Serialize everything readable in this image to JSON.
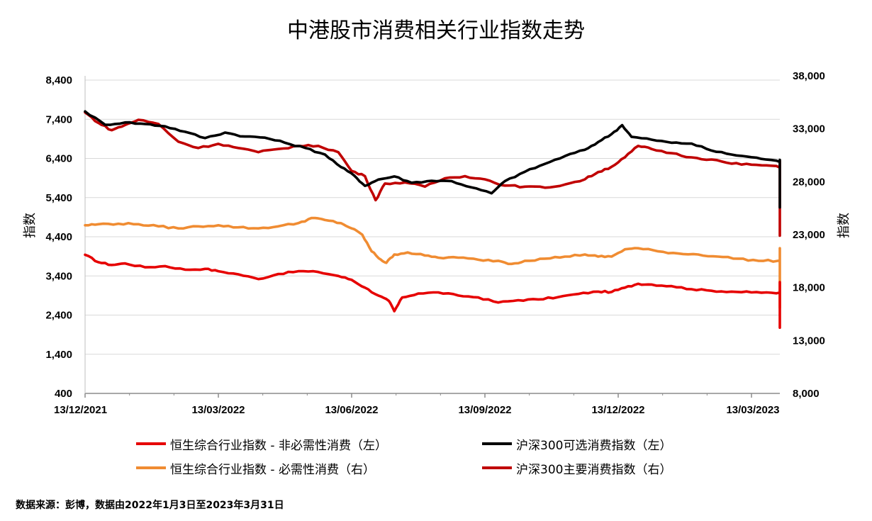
{
  "chart_data": {
    "type": "line",
    "title": "中港股市消费相关行业指数走势",
    "ylabel_left": "指数",
    "ylabel_right": "指数",
    "ylim_left": [
      400,
      8400
    ],
    "ylim_right": [
      8000,
      38000
    ],
    "yticks_left": [
      "8,400",
      "7,400",
      "6,400",
      "5,400",
      "4,400",
      "3,400",
      "2,400",
      "1,400",
      "400"
    ],
    "yticks_right": [
      "38,000",
      "33,000",
      "28,000",
      "23,000",
      "18,000",
      "13,000",
      "8,000"
    ],
    "xticks": [
      "13/12/2021",
      "13/03/2022",
      "13/06/2022",
      "13/09/2022",
      "13/12/2022",
      "13/03/2023"
    ],
    "grid": "horizontal",
    "legend_position": "bottom",
    "series": [
      {
        "name": "恒生综合行业指数 - 非必需性消费（左）",
        "axis": "left",
        "color": "#e60000",
        "points": [
          [
            0,
            3940
          ],
          [
            0.1,
            3750
          ],
          [
            0.2,
            3680
          ],
          [
            0.3,
            3720
          ],
          [
            0.45,
            3620
          ],
          [
            0.6,
            3650
          ],
          [
            0.75,
            3560
          ],
          [
            0.9,
            3580
          ],
          [
            1.0,
            3520
          ],
          [
            1.15,
            3440
          ],
          [
            1.3,
            3320
          ],
          [
            1.45,
            3450
          ],
          [
            1.6,
            3520
          ],
          [
            1.75,
            3500
          ],
          [
            1.9,
            3400
          ],
          [
            2.0,
            3300
          ],
          [
            2.1,
            3100
          ],
          [
            2.2,
            2900
          ],
          [
            2.28,
            2760
          ],
          [
            2.32,
            2500
          ],
          [
            2.38,
            2850
          ],
          [
            2.5,
            2950
          ],
          [
            2.65,
            2980
          ],
          [
            2.8,
            2900
          ],
          [
            2.95,
            2850
          ],
          [
            3.1,
            2720
          ],
          [
            3.25,
            2780
          ],
          [
            3.4,
            2800
          ],
          [
            3.55,
            2860
          ],
          [
            3.7,
            2940
          ],
          [
            3.85,
            3000
          ],
          [
            3.95,
            2990
          ],
          [
            4.05,
            3100
          ],
          [
            4.15,
            3200
          ],
          [
            4.25,
            3180
          ],
          [
            4.4,
            3140
          ],
          [
            4.55,
            3060
          ],
          [
            4.7,
            3020
          ],
          [
            4.85,
            3000
          ],
          [
            5.0,
            2980
          ],
          [
            5.15,
            2970
          ],
          [
            5.3,
            2950
          ],
          [
            5.45,
            2930
          ],
          [
            5.6,
            2880
          ],
          [
            5.75,
            2800
          ],
          [
            5.9,
            2740
          ],
          [
            6.05,
            2680
          ],
          [
            6.2,
            2600
          ],
          [
            6.35,
            2460
          ],
          [
            6.45,
            2240
          ],
          [
            6.55,
            2140
          ],
          [
            6.62,
            2080
          ],
          [
            6.68,
            2150
          ],
          [
            6.75,
            2300
          ],
          [
            6.85,
            2420
          ],
          [
            6.95,
            2550
          ],
          [
            7.05,
            2430
          ],
          [
            7.15,
            2500
          ],
          [
            7.25,
            2700
          ],
          [
            7.35,
            2830
          ],
          [
            7.45,
            2860
          ],
          [
            7.6,
            2840
          ],
          [
            7.75,
            2870
          ],
          [
            7.9,
            2920
          ],
          [
            8.05,
            3000
          ],
          [
            8.2,
            3140
          ],
          [
            8.35,
            3200
          ],
          [
            8.5,
            3240
          ],
          [
            8.65,
            3130
          ],
          [
            8.8,
            3080
          ],
          [
            8.95,
            3020
          ],
          [
            9.1,
            2960
          ],
          [
            9.2,
            2780
          ],
          [
            9.3,
            2760
          ],
          [
            9.4,
            2790
          ],
          [
            9.5,
            2820
          ],
          [
            9.55,
            2900
          ]
        ]
      },
      {
        "name": "沪深300可选消费指数（左）",
        "axis": "left",
        "color": "#000000",
        "points": [
          [
            0,
            7600
          ],
          [
            0.15,
            7260
          ],
          [
            0.3,
            7320
          ],
          [
            0.45,
            7280
          ],
          [
            0.6,
            7220
          ],
          [
            0.75,
            7080
          ],
          [
            0.9,
            6920
          ],
          [
            1.05,
            7060
          ],
          [
            1.2,
            6960
          ],
          [
            1.35,
            6930
          ],
          [
            1.5,
            6800
          ],
          [
            1.65,
            6670
          ],
          [
            1.8,
            6500
          ],
          [
            1.92,
            6180
          ],
          [
            2.02,
            5960
          ],
          [
            2.1,
            5700
          ],
          [
            2.2,
            5860
          ],
          [
            2.32,
            5940
          ],
          [
            2.45,
            5780
          ],
          [
            2.6,
            5830
          ],
          [
            2.75,
            5820
          ],
          [
            2.9,
            5660
          ],
          [
            3.05,
            5510
          ],
          [
            3.15,
            5820
          ],
          [
            3.3,
            6060
          ],
          [
            3.45,
            6260
          ],
          [
            3.6,
            6460
          ],
          [
            3.75,
            6620
          ],
          [
            3.85,
            6820
          ],
          [
            3.95,
            7020
          ],
          [
            4.03,
            7250
          ],
          [
            4.1,
            6950
          ],
          [
            4.25,
            6880
          ],
          [
            4.4,
            6800
          ],
          [
            4.55,
            6780
          ],
          [
            4.7,
            6600
          ],
          [
            4.85,
            6500
          ],
          [
            5.0,
            6430
          ],
          [
            5.15,
            6360
          ],
          [
            5.3,
            6240
          ],
          [
            5.45,
            6300
          ],
          [
            5.6,
            6200
          ],
          [
            5.7,
            5980
          ],
          [
            5.85,
            5920
          ],
          [
            6.0,
            5860
          ],
          [
            6.15,
            5800
          ],
          [
            6.3,
            5650
          ],
          [
            6.42,
            5420
          ],
          [
            6.52,
            5220
          ],
          [
            6.6,
            5150
          ],
          [
            6.7,
            5500
          ],
          [
            6.8,
            5750
          ],
          [
            6.95,
            5850
          ],
          [
            7.1,
            5700
          ],
          [
            7.25,
            5640
          ],
          [
            7.4,
            5860
          ],
          [
            7.55,
            6100
          ],
          [
            7.7,
            6180
          ],
          [
            7.85,
            6040
          ],
          [
            8.0,
            6000
          ],
          [
            8.15,
            6140
          ],
          [
            8.3,
            6280
          ],
          [
            8.45,
            6360
          ],
          [
            8.6,
            6320
          ],
          [
            8.75,
            6280
          ],
          [
            8.9,
            6150
          ],
          [
            9.05,
            6040
          ],
          [
            9.15,
            5880
          ],
          [
            9.25,
            5760
          ],
          [
            9.35,
            5720
          ],
          [
            9.45,
            5800
          ],
          [
            9.55,
            5840
          ]
        ]
      },
      {
        "name": "恒生综合行业指数 - 必需性消费（右）",
        "axis": "right",
        "color": "#f08c32",
        "points": [
          [
            0,
            24100
          ],
          [
            0.1,
            24200
          ],
          [
            0.25,
            24250
          ],
          [
            0.4,
            24200
          ],
          [
            0.55,
            24000
          ],
          [
            0.7,
            23800
          ],
          [
            0.85,
            24000
          ],
          [
            1.0,
            24100
          ],
          [
            1.15,
            23900
          ],
          [
            1.3,
            23800
          ],
          [
            1.45,
            24000
          ],
          [
            1.6,
            24300
          ],
          [
            1.7,
            24800
          ],
          [
            1.8,
            24600
          ],
          [
            1.92,
            24300
          ],
          [
            2.0,
            23800
          ],
          [
            2.08,
            23200
          ],
          [
            2.15,
            21600
          ],
          [
            2.22,
            20800
          ],
          [
            2.26,
            20500
          ],
          [
            2.32,
            21300
          ],
          [
            2.42,
            21500
          ],
          [
            2.55,
            21200
          ],
          [
            2.65,
            21000
          ],
          [
            2.8,
            21000
          ],
          [
            2.95,
            20800
          ],
          [
            3.1,
            20700
          ],
          [
            3.2,
            20400
          ],
          [
            3.3,
            20700
          ],
          [
            3.45,
            20900
          ],
          [
            3.6,
            21100
          ],
          [
            3.75,
            21300
          ],
          [
            3.85,
            21100
          ],
          [
            3.95,
            21100
          ],
          [
            4.05,
            21800
          ],
          [
            4.15,
            21900
          ],
          [
            4.3,
            21600
          ],
          [
            4.45,
            21400
          ],
          [
            4.6,
            21300
          ],
          [
            4.75,
            21100
          ],
          [
            4.9,
            20900
          ],
          [
            5.05,
            20700
          ],
          [
            5.2,
            20700
          ],
          [
            5.35,
            20500
          ],
          [
            5.5,
            20400
          ],
          [
            5.6,
            20300
          ],
          [
            5.75,
            20200
          ],
          [
            5.9,
            20100
          ],
          [
            6.0,
            20100
          ],
          [
            6.1,
            19700
          ],
          [
            6.2,
            19200
          ],
          [
            6.3,
            18400
          ],
          [
            6.4,
            17200
          ],
          [
            6.5,
            16700
          ],
          [
            6.55,
            16200
          ],
          [
            6.65,
            16800
          ],
          [
            6.75,
            17800
          ],
          [
            6.85,
            18300
          ],
          [
            6.95,
            18700
          ],
          [
            7.05,
            19100
          ],
          [
            7.15,
            18900
          ],
          [
            7.25,
            19400
          ],
          [
            7.3,
            20300
          ],
          [
            7.4,
            20700
          ],
          [
            7.55,
            20900
          ],
          [
            7.7,
            20800
          ],
          [
            7.85,
            21000
          ],
          [
            8.0,
            21300
          ],
          [
            8.15,
            21700
          ],
          [
            8.3,
            21800
          ],
          [
            8.45,
            21900
          ],
          [
            8.6,
            21600
          ],
          [
            8.75,
            21400
          ],
          [
            8.9,
            21100
          ],
          [
            9.05,
            21000
          ],
          [
            9.15,
            20900
          ],
          [
            9.25,
            20600
          ],
          [
            9.35,
            20700
          ],
          [
            9.45,
            20900
          ],
          [
            9.55,
            20900
          ]
        ]
      },
      {
        "name": "沪深300主要消费指数（右）",
        "axis": "right",
        "color": "#c00000",
        "points": [
          [
            0,
            34900
          ],
          [
            0.1,
            33900
          ],
          [
            0.2,
            33200
          ],
          [
            0.3,
            33700
          ],
          [
            0.4,
            34200
          ],
          [
            0.55,
            33800
          ],
          [
            0.7,
            32100
          ],
          [
            0.85,
            31500
          ],
          [
            1.0,
            31900
          ],
          [
            1.15,
            31500
          ],
          [
            1.3,
            31100
          ],
          [
            1.45,
            31400
          ],
          [
            1.6,
            31700
          ],
          [
            1.75,
            31700
          ],
          [
            1.9,
            31100
          ],
          [
            2.0,
            29300
          ],
          [
            2.1,
            28800
          ],
          [
            2.18,
            26500
          ],
          [
            2.25,
            28100
          ],
          [
            2.4,
            28200
          ],
          [
            2.55,
            27800
          ],
          [
            2.7,
            28600
          ],
          [
            2.85,
            28800
          ],
          [
            3.0,
            28500
          ],
          [
            3.15,
            27900
          ],
          [
            3.3,
            27800
          ],
          [
            3.45,
            27700
          ],
          [
            3.6,
            28000
          ],
          [
            3.75,
            28500
          ],
          [
            3.85,
            29200
          ],
          [
            3.95,
            29700
          ],
          [
            4.05,
            30600
          ],
          [
            4.15,
            31700
          ],
          [
            4.25,
            31400
          ],
          [
            4.4,
            31000
          ],
          [
            4.55,
            30600
          ],
          [
            4.7,
            30400
          ],
          [
            4.85,
            30000
          ],
          [
            5.0,
            29900
          ],
          [
            5.15,
            29800
          ],
          [
            5.3,
            29400
          ],
          [
            5.45,
            29300
          ],
          [
            5.6,
            29100
          ],
          [
            5.7,
            29100
          ],
          [
            5.85,
            29100
          ],
          [
            6.0,
            29100
          ],
          [
            6.1,
            28800
          ],
          [
            6.2,
            28200
          ],
          [
            6.3,
            27100
          ],
          [
            6.4,
            25700
          ],
          [
            6.5,
            24100
          ],
          [
            6.55,
            23100
          ],
          [
            6.65,
            24200
          ],
          [
            6.75,
            25100
          ],
          [
            6.85,
            25400
          ],
          [
            6.95,
            25800
          ],
          [
            7.05,
            25300
          ],
          [
            7.15,
            25600
          ],
          [
            7.25,
            26400
          ],
          [
            7.35,
            27500
          ],
          [
            7.45,
            28200
          ],
          [
            7.55,
            28600
          ],
          [
            7.7,
            28500
          ],
          [
            7.85,
            28400
          ],
          [
            8.0,
            28900
          ],
          [
            8.15,
            29500
          ],
          [
            8.3,
            29900
          ],
          [
            8.45,
            30200
          ],
          [
            8.6,
            30100
          ],
          [
            8.75,
            29900
          ],
          [
            8.9,
            29800
          ],
          [
            9.05,
            29600
          ],
          [
            9.15,
            29400
          ],
          [
            9.25,
            29000
          ],
          [
            9.35,
            28900
          ],
          [
            9.45,
            29300
          ],
          [
            9.55,
            29600
          ]
        ]
      }
    ]
  },
  "source": "数据来源：彭博，数据由2022年1月3日至2023年3月31日"
}
